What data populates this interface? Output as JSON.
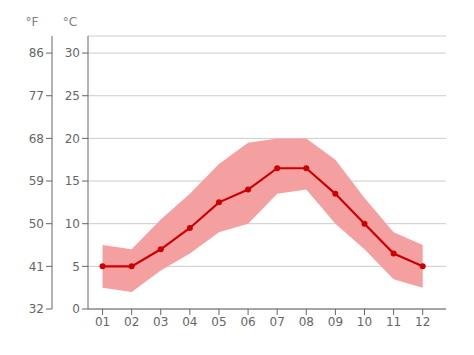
{
  "chart_data": {
    "type": "line",
    "x": [
      1,
      2,
      3,
      4,
      5,
      6,
      7,
      8,
      9,
      10,
      11,
      12
    ],
    "xlim": [
      0.5,
      12.8
    ],
    "xticks": [
      {
        "value": 1,
        "label": "01"
      },
      {
        "value": 2,
        "label": "02"
      },
      {
        "value": 3,
        "label": "03"
      },
      {
        "value": 4,
        "label": "04"
      },
      {
        "value": 5,
        "label": "05"
      },
      {
        "value": 6,
        "label": "06"
      },
      {
        "value": 7,
        "label": "07"
      },
      {
        "value": 8,
        "label": "08"
      },
      {
        "value": 9,
        "label": "09"
      },
      {
        "value": 10,
        "label": "10"
      },
      {
        "value": 11,
        "label": "11"
      },
      {
        "value": 12,
        "label": "12"
      }
    ],
    "ylim": [
      0,
      32
    ],
    "yticks": [
      0,
      5,
      10,
      15,
      20,
      25,
      30
    ],
    "y_label": "°C",
    "y2lim": [
      32,
      89.6
    ],
    "y2ticks": [
      32,
      41,
      50,
      59,
      68,
      77,
      86
    ],
    "y2_label": "°F",
    "grid": true,
    "series": [
      {
        "type": "band",
        "color": "#f4a0a0",
        "low": [
          2.5,
          2.0,
          4.5,
          6.5,
          9.0,
          10.0,
          13.5,
          14.0,
          10.0,
          7.0,
          3.5,
          2.5
        ],
        "high": [
          7.5,
          7.0,
          10.5,
          13.5,
          17.0,
          19.5,
          20.0,
          20.0,
          17.5,
          13.0,
          9.0,
          7.5
        ]
      },
      {
        "type": "line",
        "color": "#cc0000",
        "marker": "circle",
        "values": [
          5.0,
          5.0,
          7.0,
          9.5,
          12.5,
          14.0,
          16.5,
          16.5,
          13.5,
          10.0,
          6.5,
          5.0
        ]
      }
    ]
  }
}
